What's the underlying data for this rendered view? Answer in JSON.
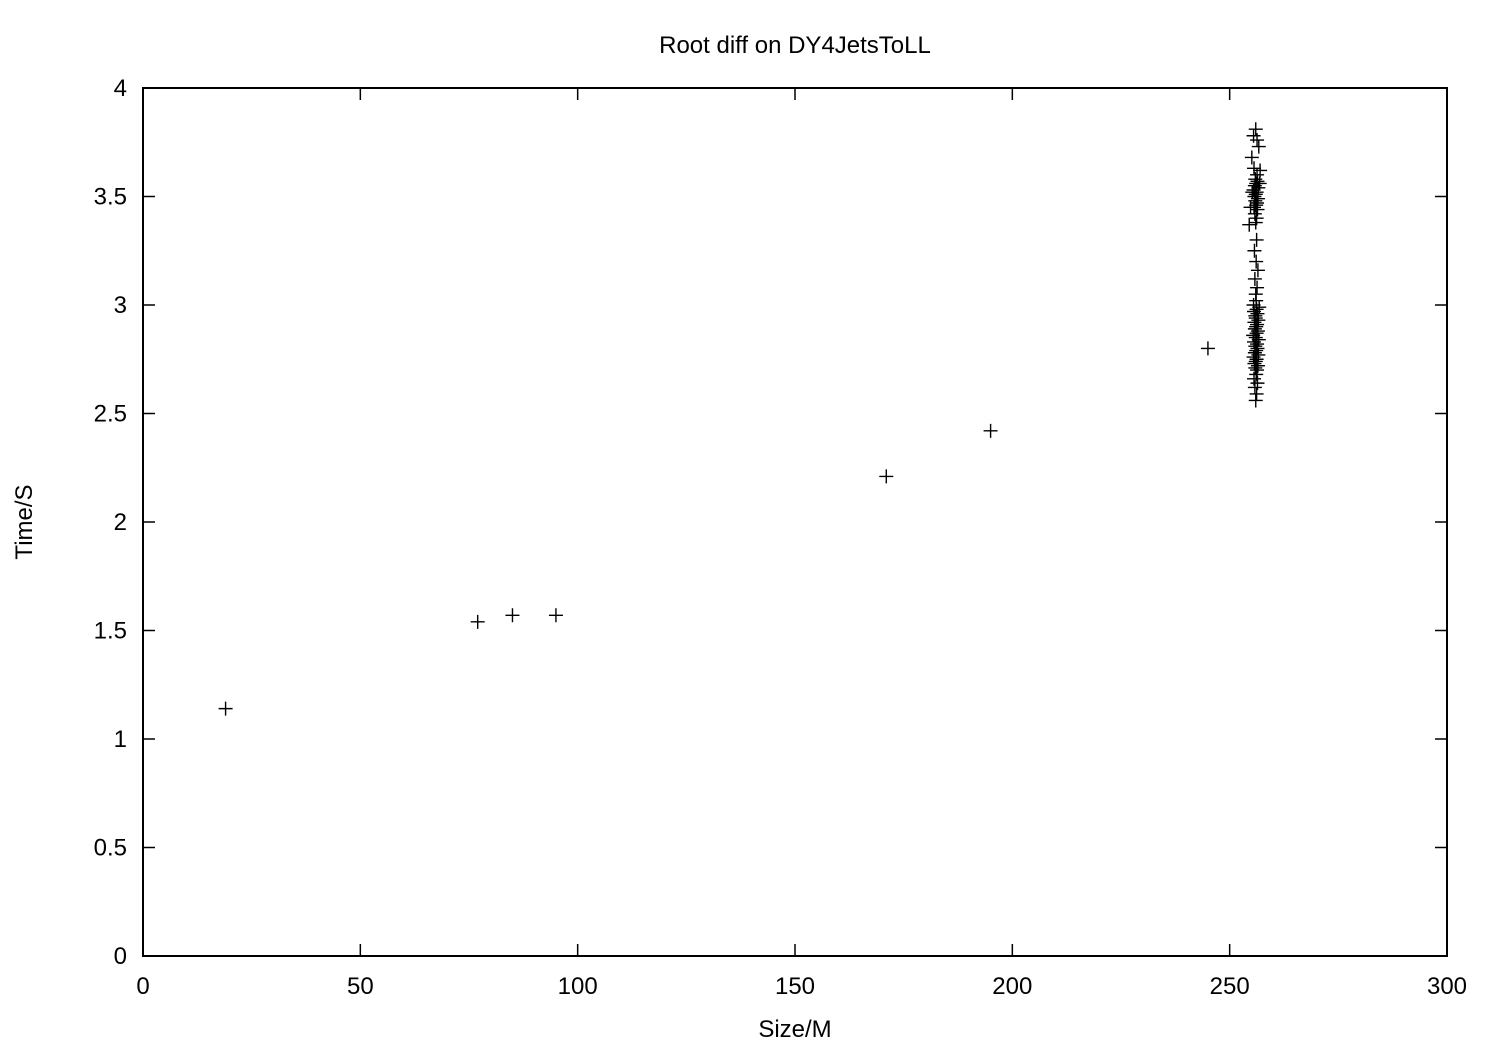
{
  "chart_data": {
    "type": "scatter",
    "title": "Root diff on DY4JetsToLL",
    "xlabel": "Size/M",
    "ylabel": "Time/S",
    "xlim": [
      0,
      300
    ],
    "ylim": [
      0,
      4
    ],
    "xticks": [
      0,
      50,
      100,
      150,
      200,
      250,
      300
    ],
    "yticks": [
      0,
      0.5,
      1,
      1.5,
      2,
      2.5,
      3,
      3.5,
      4
    ],
    "xtick_labels": [
      "0",
      "50",
      "100",
      "150",
      "200",
      "250",
      "300"
    ],
    "ytick_labels": [
      "0",
      "0.5",
      "1",
      "1.5",
      "2",
      "2.5",
      "3",
      "3.5",
      "4"
    ],
    "grid": false,
    "legend": "none",
    "marker": "plus",
    "series": [
      {
        "name": "points",
        "x": [
          19,
          77,
          85,
          95,
          171,
          195,
          245,
          256,
          256.2,
          255.8,
          256.4,
          255.6,
          256.1,
          256.3,
          255.9,
          256.5,
          255.7,
          256,
          256.2,
          255.5,
          256.6,
          255.8,
          256.1,
          256.4,
          255.9,
          256.3,
          255.6,
          256.7,
          256,
          255.4,
          256.2,
          256.5,
          255.8,
          256.1,
          256.3,
          255.7,
          256.6,
          256,
          255.9,
          256.4,
          255.6,
          256.2,
          256.8,
          255.5,
          256.1,
          256,
          256.3,
          255.8,
          256.5,
          256.1,
          255.7,
          256.2,
          256,
          256.2,
          255.8,
          256.4,
          255.6,
          256.1,
          256.3,
          255.9,
          256.5,
          255.7,
          256,
          256.2,
          255.5,
          256.6,
          255.8,
          256.1,
          256.4,
          255.9,
          256.3,
          255.6,
          257,
          254.5,
          255.2,
          256.9,
          255.1,
          256.7,
          254.8,
          256.3,
          255.5,
          256
        ],
        "y": [
          1.14,
          1.54,
          1.57,
          1.57,
          2.21,
          2.42,
          2.8,
          2.56,
          2.59,
          2.62,
          2.64,
          2.66,
          2.68,
          2.7,
          2.71,
          2.72,
          2.73,
          2.74,
          2.75,
          2.76,
          2.77,
          2.78,
          2.79,
          2.8,
          2.81,
          2.82,
          2.83,
          2.84,
          2.85,
          2.86,
          2.87,
          2.88,
          2.89,
          2.9,
          2.91,
          2.92,
          2.93,
          2.94,
          2.95,
          2.96,
          2.97,
          2.98,
          2.99,
          3.0,
          3.02,
          3.05,
          3.08,
          3.12,
          3.16,
          3.2,
          3.25,
          3.3,
          3.38,
          3.4,
          3.42,
          3.44,
          3.45,
          3.46,
          3.47,
          3.48,
          3.49,
          3.5,
          3.51,
          3.52,
          3.53,
          3.54,
          3.55,
          3.56,
          3.57,
          3.58,
          3.6,
          3.63,
          3.62,
          3.37,
          3.52,
          3.56,
          3.68,
          3.73,
          3.45,
          3.76,
          3.78,
          3.81
        ]
      }
    ]
  }
}
